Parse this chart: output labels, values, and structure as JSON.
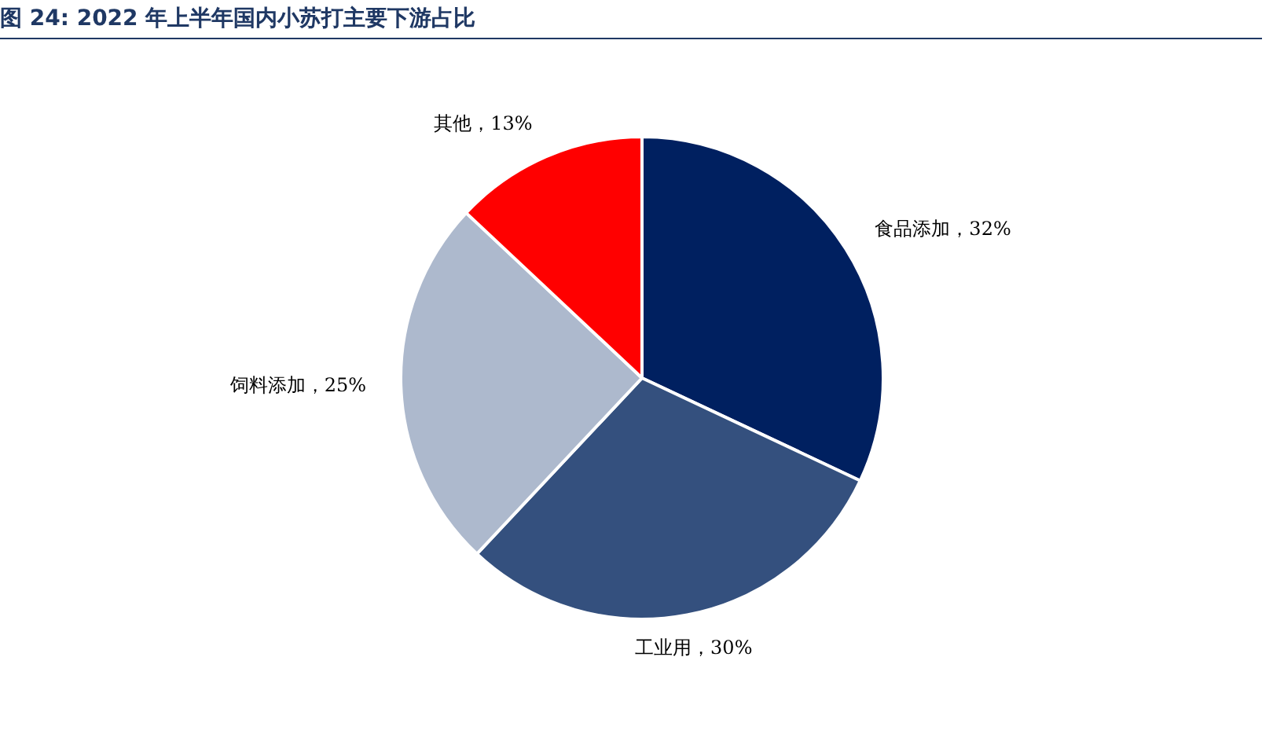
{
  "chart_data": {
    "type": "pie",
    "title": "图 24:  2022 年上半年国内小苏打主要下游占比",
    "categories": [
      "食品添加",
      "工业用",
      "饲料添加",
      "其他"
    ],
    "values": [
      32,
      30,
      25,
      13
    ],
    "colors": [
      "#002060",
      "#34507e",
      "#adb9cd",
      "#ff0000"
    ],
    "value_labels": [
      "，32%",
      "，30%",
      "，25%",
      "，13%"
    ],
    "legend": false
  }
}
